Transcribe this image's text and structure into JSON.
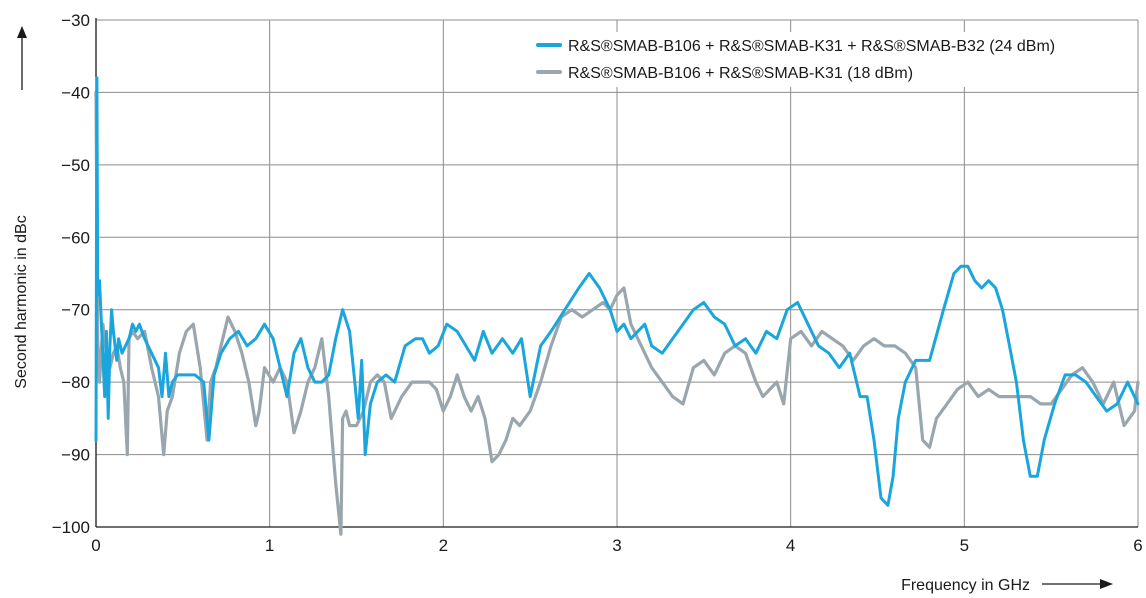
{
  "chart_data": {
    "type": "line",
    "title": "",
    "xlabel": "Frequency in GHz",
    "ylabel": "Second harmonic in dBc",
    "xlim": [
      0,
      6
    ],
    "ylim": [
      -100,
      -30
    ],
    "xticks": [
      0,
      1,
      2,
      3,
      4,
      5,
      6
    ],
    "yticks": [
      -30,
      -40,
      -50,
      -60,
      -70,
      -80,
      -90,
      -100
    ],
    "xtick_labels": [
      "0",
      "1",
      "2",
      "3",
      "4",
      "5",
      "6"
    ],
    "ytick_labels": [
      "−30",
      "−40",
      "−50",
      "−60",
      "−70",
      "−80",
      "−90",
      "−100"
    ],
    "grid": true,
    "legend_position": "top-right",
    "series": [
      {
        "name": "R&S®SMAB-B106 + R&S®SMAB-K31 + R&S®SMAB-B32 (24 dBm)",
        "color": "#1aa6dc",
        "x": [
          0,
          0.005,
          0.01,
          0.02,
          0.035,
          0.05,
          0.06,
          0.07,
          0.08,
          0.09,
          0.1,
          0.12,
          0.13,
          0.15,
          0.17,
          0.19,
          0.21,
          0.23,
          0.25,
          0.28,
          0.32,
          0.36,
          0.38,
          0.4,
          0.42,
          0.44,
          0.47,
          0.52,
          0.57,
          0.62,
          0.65,
          0.68,
          0.72,
          0.77,
          0.82,
          0.87,
          0.92,
          0.97,
          1.02,
          1.06,
          1.1,
          1.14,
          1.18,
          1.22,
          1.26,
          1.3,
          1.34,
          1.38,
          1.42,
          1.46,
          1.49,
          1.51,
          1.53,
          1.55,
          1.58,
          1.62,
          1.67,
          1.72,
          1.78,
          1.84,
          1.88,
          1.92,
          1.97,
          2.02,
          2.08,
          2.13,
          2.18,
          2.23,
          2.28,
          2.34,
          2.4,
          2.45,
          2.5,
          2.56,
          2.62,
          2.7,
          2.78,
          2.84,
          2.9,
          2.96,
          3.0,
          3.04,
          3.08,
          3.12,
          3.16,
          3.2,
          3.26,
          3.32,
          3.38,
          3.44,
          3.5,
          3.56,
          3.62,
          3.68,
          3.74,
          3.8,
          3.86,
          3.92,
          3.98,
          4.04,
          4.1,
          4.16,
          4.22,
          4.28,
          4.34,
          4.4,
          4.44,
          4.48,
          4.52,
          4.56,
          4.59,
          4.62,
          4.66,
          4.72,
          4.8,
          4.88,
          4.94,
          4.98,
          5.02,
          5.06,
          5.1,
          5.14,
          5.18,
          5.22,
          5.26,
          5.3,
          5.34,
          5.38,
          5.42,
          5.46,
          5.52,
          5.58,
          5.64,
          5.7,
          5.76,
          5.82,
          5.88,
          5.94,
          6.0
        ],
        "values": [
          -88,
          -38,
          -68,
          -66,
          -74,
          -82,
          -73,
          -85,
          -75,
          -70,
          -73,
          -77,
          -74,
          -76,
          -75,
          -74,
          -72,
          -73,
          -72,
          -74,
          -76,
          -78,
          -82,
          -76,
          -82,
          -80,
          -79,
          -79,
          -79,
          -80,
          -88,
          -79,
          -76,
          -74,
          -73,
          -75,
          -74,
          -72,
          -74,
          -78,
          -82,
          -76,
          -74,
          -78,
          -80,
          -80,
          -79,
          -74,
          -70,
          -73,
          -80,
          -85,
          -77,
          -90,
          -83,
          -80,
          -79,
          -80,
          -75,
          -74,
          -74,
          -76,
          -75,
          -72,
          -73,
          -75,
          -77,
          -73,
          -76,
          -74,
          -76,
          -74,
          -82,
          -75,
          -73,
          -70,
          -67,
          -65,
          -67,
          -70,
          -73,
          -72,
          -74,
          -73,
          -72,
          -75,
          -76,
          -74,
          -72,
          -70,
          -69,
          -71,
          -72,
          -75,
          -74,
          -76,
          -73,
          -74,
          -70,
          -69,
          -72,
          -75,
          -76,
          -78,
          -76,
          -82,
          -82,
          -88,
          -96,
          -97,
          -93,
          -85,
          -80,
          -77,
          -77,
          -70,
          -65,
          -64,
          -64,
          -66,
          -67,
          -66,
          -67,
          -70,
          -75,
          -80,
          -88,
          -93,
          -93,
          -88,
          -83,
          -79,
          -79,
          -80,
          -82,
          -84,
          -83,
          -80,
          -83
        ]
      },
      {
        "name": "R&S®SMAB-B106 + R&S®SMAB-K31 (18 dBm)",
        "color": "#9aa6ad",
        "x": [
          0,
          0.01,
          0.02,
          0.04,
          0.06,
          0.08,
          0.1,
          0.12,
          0.14,
          0.16,
          0.18,
          0.19,
          0.21,
          0.24,
          0.28,
          0.32,
          0.36,
          0.39,
          0.41,
          0.44,
          0.48,
          0.52,
          0.56,
          0.6,
          0.64,
          0.66,
          0.69,
          0.72,
          0.76,
          0.8,
          0.84,
          0.88,
          0.92,
          0.94,
          0.97,
          1.02,
          1.06,
          1.1,
          1.14,
          1.18,
          1.22,
          1.26,
          1.3,
          1.34,
          1.38,
          1.41,
          1.42,
          1.44,
          1.46,
          1.5,
          1.54,
          1.58,
          1.62,
          1.66,
          1.7,
          1.76,
          1.82,
          1.88,
          1.92,
          1.96,
          2.0,
          2.04,
          2.08,
          2.12,
          2.16,
          2.2,
          2.24,
          2.28,
          2.32,
          2.36,
          2.4,
          2.44,
          2.5,
          2.56,
          2.62,
          2.68,
          2.74,
          2.8,
          2.86,
          2.92,
          2.96,
          3.0,
          3.04,
          3.08,
          3.14,
          3.2,
          3.26,
          3.32,
          3.38,
          3.44,
          3.5,
          3.56,
          3.62,
          3.68,
          3.74,
          3.8,
          3.84,
          3.88,
          3.92,
          3.96,
          4.0,
          4.06,
          4.12,
          4.18,
          4.24,
          4.3,
          4.36,
          4.42,
          4.48,
          4.54,
          4.6,
          4.66,
          4.72,
          4.76,
          4.8,
          4.84,
          4.9,
          4.96,
          5.02,
          5.08,
          5.14,
          5.2,
          5.26,
          5.32,
          5.38,
          5.44,
          5.5,
          5.56,
          5.62,
          5.68,
          5.74,
          5.8,
          5.86,
          5.92,
          5.98,
          6.0
        ],
        "values": [
          -40,
          -74,
          -80,
          -72,
          -76,
          -78,
          -76,
          -75,
          -78,
          -80,
          -90,
          -74,
          -73,
          -74,
          -73,
          -78,
          -82,
          -90,
          -84,
          -82,
          -76,
          -73,
          -72,
          -78,
          -88,
          -80,
          -78,
          -75,
          -71,
          -73,
          -76,
          -80,
          -86,
          -84,
          -78,
          -80,
          -78,
          -80,
          -87,
          -84,
          -80,
          -78,
          -74,
          -82,
          -94,
          -101,
          -85,
          -84,
          -86,
          -86,
          -84,
          -80,
          -79,
          -80,
          -85,
          -82,
          -80,
          -80,
          -80,
          -81,
          -84,
          -82,
          -79,
          -82,
          -84,
          -82,
          -85,
          -91,
          -90,
          -88,
          -85,
          -86,
          -84,
          -80,
          -75,
          -71,
          -70,
          -71,
          -70,
          -69,
          -70,
          -68,
          -67,
          -72,
          -75,
          -78,
          -80,
          -82,
          -83,
          -78,
          -77,
          -79,
          -76,
          -75,
          -76,
          -80,
          -82,
          -81,
          -80,
          -83,
          -74,
          -73,
          -75,
          -73,
          -74,
          -75,
          -77,
          -75,
          -74,
          -75,
          -75,
          -76,
          -78,
          -88,
          -89,
          -85,
          -83,
          -81,
          -80,
          -82,
          -81,
          -82,
          -82,
          -82,
          -82,
          -83,
          -83,
          -81,
          -79,
          -78,
          -80,
          -83,
          -80,
          -86,
          -84,
          -80
        ]
      }
    ]
  }
}
